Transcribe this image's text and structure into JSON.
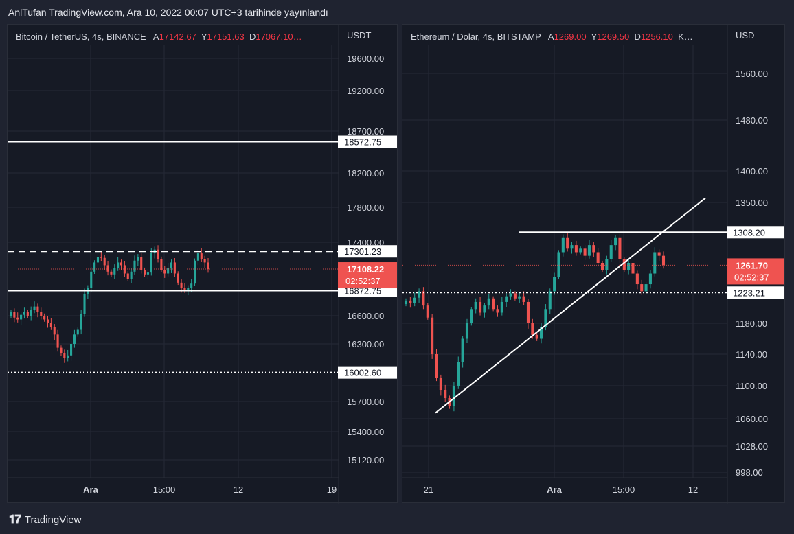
{
  "header": {
    "title": "AnlTufan TradingView.com, Ara 10, 2022 00:07 UTC+3 tarihinde yayınlandı"
  },
  "footer": {
    "brand": "TradingView",
    "logo_icon": "tradingview-logo-icon"
  },
  "colors": {
    "up": "#26a69a",
    "down": "#ef5350",
    "bg": "#161a25",
    "grid": "#252936",
    "line": "#ffffff",
    "price_tag": "#ef5350"
  },
  "chart_data": [
    {
      "type": "candlestick",
      "symbol": "Bitcoin / TetherUS, 4s, BINANCE",
      "ohlc_labels": {
        "open_label": "A",
        "open": "17142.67",
        "high_label": "Y",
        "high": "17151.63",
        "low_label": "D",
        "low": "17067.10…"
      },
      "currency": "USDT",
      "y_ticks": [
        "19600.00",
        "19200.00",
        "18700.00",
        "18200.00",
        "17800.00",
        "17400.00",
        "16600.00",
        "16300.00",
        "15700.00",
        "15400.00",
        "15120.00"
      ],
      "y_tick_values": [
        19600,
        19200,
        18700,
        18200,
        17800,
        17400,
        16600,
        16300,
        15700,
        15400,
        15120
      ],
      "x_ticks": [
        "Ara",
        "15:00",
        "12",
        "19"
      ],
      "levels": [
        {
          "label": "18572.75",
          "value": 18572.75,
          "style": "solid"
        },
        {
          "label": "17301.23",
          "value": 17301.23,
          "style": "dashed"
        },
        {
          "label": "16872.75",
          "value": 16872.75,
          "style": "solid"
        },
        {
          "label": "16002.60",
          "value": 16002.6,
          "style": "dotted"
        }
      ],
      "last_price": {
        "label": "17108.22",
        "value": 17108.22,
        "countdown": "02:52:37"
      },
      "closes": [
        16640,
        16580,
        16560,
        16610,
        16640,
        16600,
        16660,
        16700,
        16640,
        16600,
        16560,
        16520,
        16480,
        16400,
        16260,
        16200,
        16150,
        16180,
        16300,
        16400,
        16450,
        16620,
        16840,
        16900,
        17080,
        17180,
        17240,
        17230,
        17150,
        17080,
        17050,
        17120,
        17180,
        17150,
        17060,
        17000,
        17080,
        17200,
        17240,
        17100,
        17050,
        17070,
        17280,
        17320,
        17220,
        17100,
        17060,
        17120,
        17180,
        17060,
        16960,
        16900,
        16880,
        16900,
        16950,
        17200,
        17280,
        17220,
        17180,
        17108
      ]
    },
    {
      "type": "candlestick",
      "symbol": "Ethereum / Dolar, 4s, BITSTAMP",
      "ohlc_labels": {
        "open_label": "A",
        "open": "1269.00",
        "high_label": "Y",
        "high": "1269.50",
        "low_label": "D",
        "low": "1256.10",
        "more": "K…"
      },
      "currency": "USD",
      "y_ticks": [
        "1560.00",
        "1480.00",
        "1400.00",
        "1350.00",
        "1180.00",
        "1140.00",
        "1100.00",
        "1060.00",
        "1028.00",
        "998.00"
      ],
      "y_tick_values": [
        1560,
        1480,
        1400,
        1350,
        1180,
        1140,
        1100,
        1060,
        1028,
        998
      ],
      "x_ticks": [
        "21",
        "Ara",
        "15:00",
        "12"
      ],
      "levels": [
        {
          "label": "1308.20",
          "value": 1308.2,
          "style": "solid"
        },
        {
          "label": "1223.21",
          "value": 1223.21,
          "style": "dotted"
        }
      ],
      "trendline": {
        "start_value": 1067,
        "end_value": 1357
      },
      "last_price": {
        "label": "1261.70",
        "value": 1261.7,
        "countdown": "02:52:37"
      },
      "closes": [
        1212,
        1208,
        1216,
        1225,
        1205,
        1188,
        1140,
        1110,
        1095,
        1085,
        1075,
        1100,
        1130,
        1160,
        1180,
        1200,
        1210,
        1195,
        1205,
        1215,
        1200,
        1195,
        1210,
        1218,
        1222,
        1215,
        1218,
        1210,
        1180,
        1165,
        1160,
        1175,
        1200,
        1225,
        1245,
        1280,
        1300,
        1285,
        1290,
        1280,
        1285,
        1275,
        1290,
        1280,
        1265,
        1255,
        1270,
        1290,
        1300,
        1270,
        1255,
        1265,
        1250,
        1235,
        1225,
        1235,
        1250,
        1280,
        1275,
        1262
      ]
    }
  ]
}
